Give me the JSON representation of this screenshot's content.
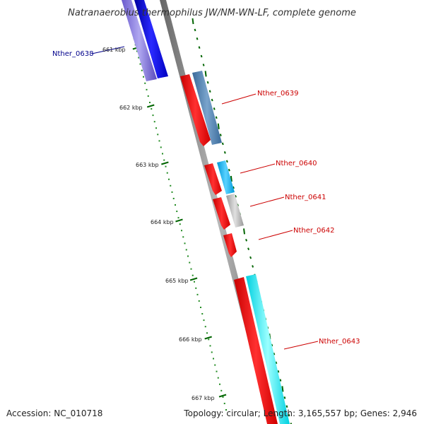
{
  "title": "Natranaerobius thermophilus JW/NM-WN-LF, complete genome",
  "accession": "Accession: NC_010718",
  "topology": "Topology: circular; Length: 3,165,557 bp; Genes: 2,946",
  "ruler_ticks": [
    "661 kbp",
    "662 kbp",
    "663 kbp",
    "664 kbp",
    "665 kbp",
    "666 kbp",
    "667 kbp"
  ],
  "genes": [
    {
      "label": "Nther_0638",
      "label_color": "#00008b",
      "strand": "reverse",
      "feature_color": "#0000ee",
      "track_color": "#7b68ee"
    },
    {
      "label": "Nther_0639",
      "label_color": "#cc0000",
      "strand": "forward",
      "feature_color": "#ff0000",
      "track_color": "#4682b4"
    },
    {
      "label": "Nther_0640",
      "label_color": "#cc0000",
      "strand": "forward",
      "feature_color": "#ff0000",
      "track_color": "#00bfff"
    },
    {
      "label": "Nther_0641",
      "label_color": "#cc0000",
      "strand": "forward",
      "feature_color": "#ff0000",
      "track_color": "#bdbdbd"
    },
    {
      "label": "Nther_0642",
      "label_color": "#cc0000",
      "strand": "forward",
      "feature_color": "#ff0000",
      "track_color": ""
    },
    {
      "label": "Nther_0643",
      "label_color": "#cc0000",
      "strand": "forward",
      "feature_color": "#ff0000",
      "track_color": "#00ffff"
    }
  ],
  "colors": {
    "backbone": "#888888",
    "ruler_dots": "#228b22",
    "ruler_ticks": "#006400"
  }
}
